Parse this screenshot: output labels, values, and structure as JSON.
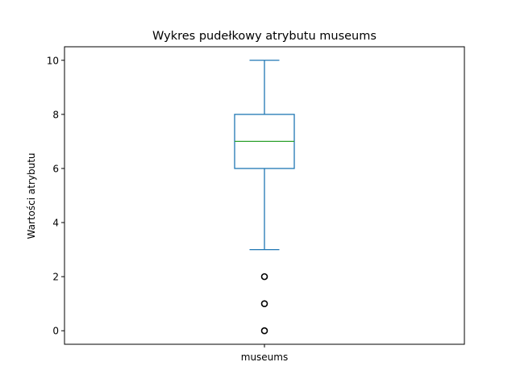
{
  "chart_data": {
    "type": "box",
    "title": "Wykres pudełkowy atrybutu museums",
    "xlabel": "",
    "ylabel": "Wartości atrybutu",
    "categories": [
      "museums"
    ],
    "ylim": [
      -0.5,
      10.5
    ],
    "yticks": [
      0,
      2,
      4,
      6,
      8,
      10
    ],
    "grid": false,
    "series": [
      {
        "category": "museums",
        "whisker_low": 3,
        "q1": 6,
        "median": 7,
        "q3": 8,
        "whisker_high": 10,
        "outliers": [
          0,
          1,
          2
        ]
      }
    ],
    "colors": {
      "box": "#1f77b4",
      "median": "#2ca02c",
      "outlier": "#000000",
      "axes": "#000000"
    }
  }
}
